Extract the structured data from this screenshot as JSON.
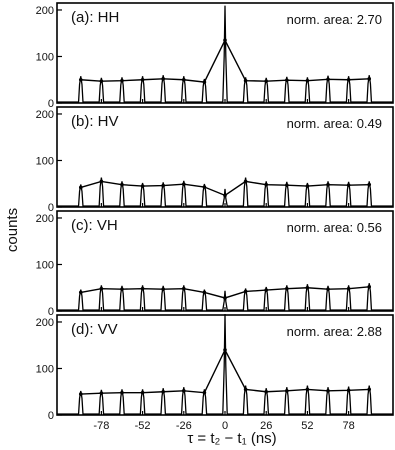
{
  "chart_data": {
    "type": "line",
    "ylabel": "counts",
    "xlabel": "τ = t₂ − t₁ (ns)",
    "x_ticks": [
      -78,
      -52,
      -26,
      0,
      26,
      52,
      78
    ],
    "y_ticks": [
      0,
      100,
      200
    ],
    "xlim": [
      -106,
      106
    ],
    "ylim": [
      0,
      215
    ],
    "pulse_period_ns": 13,
    "panels": [
      {
        "label": "(a): HH",
        "norm_area": "norm. area: 2.70",
        "x": [
          -91,
          -78,
          -65,
          -52,
          -39,
          -26,
          -13,
          0,
          13,
          26,
          39,
          52,
          65,
          78,
          91
        ],
        "peaks": [
          50,
          47,
          48,
          50,
          52,
          50,
          45,
          135,
          48,
          47,
          49,
          48,
          51,
          50,
          52
        ]
      },
      {
        "label": "(b): HV",
        "norm_area": "norm. area: 0.49",
        "x": [
          -91,
          -78,
          -65,
          -52,
          -39,
          -26,
          -13,
          0,
          13,
          26,
          39,
          52,
          65,
          78,
          91
        ],
        "peaks": [
          42,
          55,
          48,
          45,
          46,
          49,
          43,
          25,
          55,
          48,
          47,
          45,
          48,
          47,
          48
        ]
      },
      {
        "label": "(c): VH",
        "norm_area": "norm. area: 0.56",
        "x": [
          -91,
          -78,
          -65,
          -52,
          -39,
          -26,
          -13,
          0,
          13,
          26,
          39,
          52,
          65,
          78,
          91
        ],
        "peaks": [
          40,
          48,
          47,
          48,
          47,
          48,
          40,
          28,
          42,
          45,
          48,
          50,
          47,
          48,
          52
        ]
      },
      {
        "label": "(d): VV",
        "norm_area": "norm. area: 2.88",
        "x": [
          -91,
          -78,
          -65,
          -52,
          -39,
          -26,
          -13,
          0,
          13,
          26,
          39,
          52,
          65,
          78,
          91
        ],
        "peaks": [
          45,
          47,
          48,
          48,
          50,
          52,
          48,
          140,
          55,
          50,
          52,
          55,
          52,
          53,
          55
        ]
      }
    ]
  }
}
